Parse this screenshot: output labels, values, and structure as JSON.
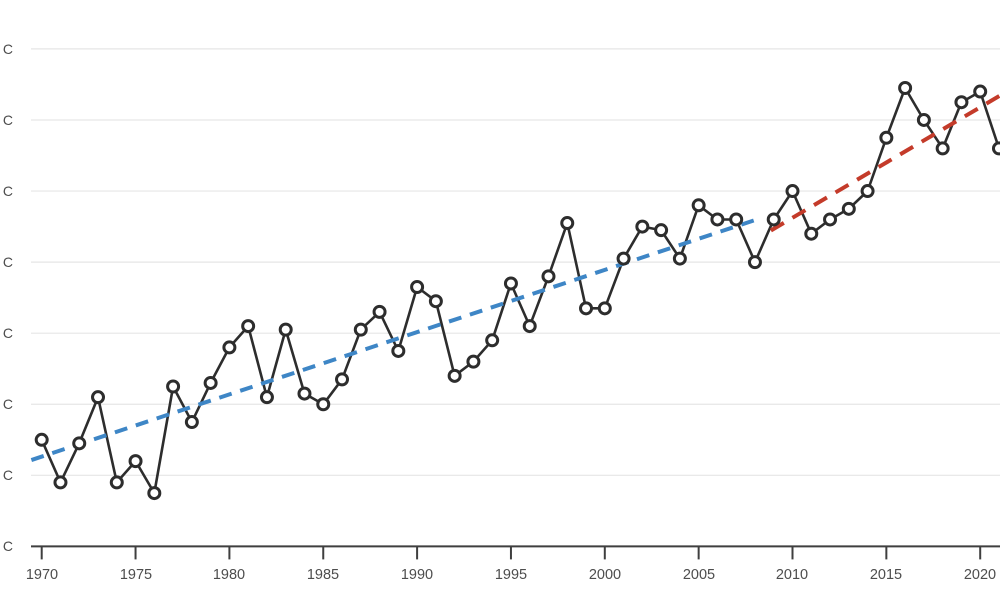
{
  "page": {
    "background": "#ffffff"
  },
  "chart_data": {
    "type": "line",
    "x": [
      1970,
      1971,
      1972,
      1973,
      1974,
      1975,
      1976,
      1977,
      1978,
      1979,
      1980,
      1981,
      1982,
      1983,
      1984,
      1985,
      1986,
      1987,
      1988,
      1989,
      1990,
      1991,
      1992,
      1993,
      1994,
      1995,
      1996,
      1997,
      1998,
      1999,
      2000,
      2001,
      2002,
      2003,
      2004,
      2005,
      2006,
      2007,
      2008,
      2009,
      2010,
      2011,
      2012,
      2013,
      2014,
      2015,
      2016,
      2017,
      2018,
      2019,
      2020,
      2021
    ],
    "series": [
      {
        "name": "annual-temperature-anomaly",
        "marker": "open-circle",
        "values": [
          0.3,
          0.18,
          0.29,
          0.42,
          0.18,
          0.24,
          0.15,
          0.45,
          0.35,
          0.46,
          0.56,
          0.62,
          0.42,
          0.61,
          0.43,
          0.4,
          0.47,
          0.61,
          0.66,
          0.55,
          0.73,
          0.69,
          0.48,
          0.52,
          0.58,
          0.74,
          0.62,
          0.76,
          0.91,
          0.67,
          0.67,
          0.81,
          0.9,
          0.89,
          0.81,
          0.96,
          0.92,
          0.92,
          0.8,
          0.92,
          1.0,
          0.88,
          0.92,
          0.95,
          1.0,
          1.15,
          1.29,
          1.2,
          1.12,
          1.25,
          1.28,
          1.12
        ]
      }
    ],
    "trend_lines": [
      {
        "name": "trend-line-early",
        "style": "dashed",
        "dash": "13 9",
        "year_start": 1969.45,
        "value_start": 0.243,
        "year_end": 2008.1,
        "value_end": 0.92
      },
      {
        "name": "trend-line-recent",
        "style": "dashed",
        "dash": "15 10",
        "year_start": 2008.85,
        "value_start": 0.889,
        "year_end": 2021.1,
        "value_end": 1.27
      }
    ],
    "x_tick_labels": [
      "1970",
      "1975",
      "1980",
      "1985",
      "1990",
      "1995",
      "2000",
      "2005",
      "2010",
      "2015",
      "2020"
    ],
    "y_tick_labels": [
      "C",
      "C",
      "C",
      "C",
      "C",
      "C",
      "C",
      "C"
    ],
    "ylim": [
      0.0,
      1.4
    ],
    "y_tick_step": 0.2,
    "grid": true,
    "legend": "none"
  },
  "colors": {
    "observed_line": "#2d2d2d",
    "marker_fill": "#ffffff",
    "trend_early": "#3e86c6",
    "trend_recent": "#c43b2a",
    "gridline": "#e6e6e6",
    "axis": "#3f3f3f",
    "tick_text": "#4d4d4d",
    "background": "#ffffff"
  }
}
